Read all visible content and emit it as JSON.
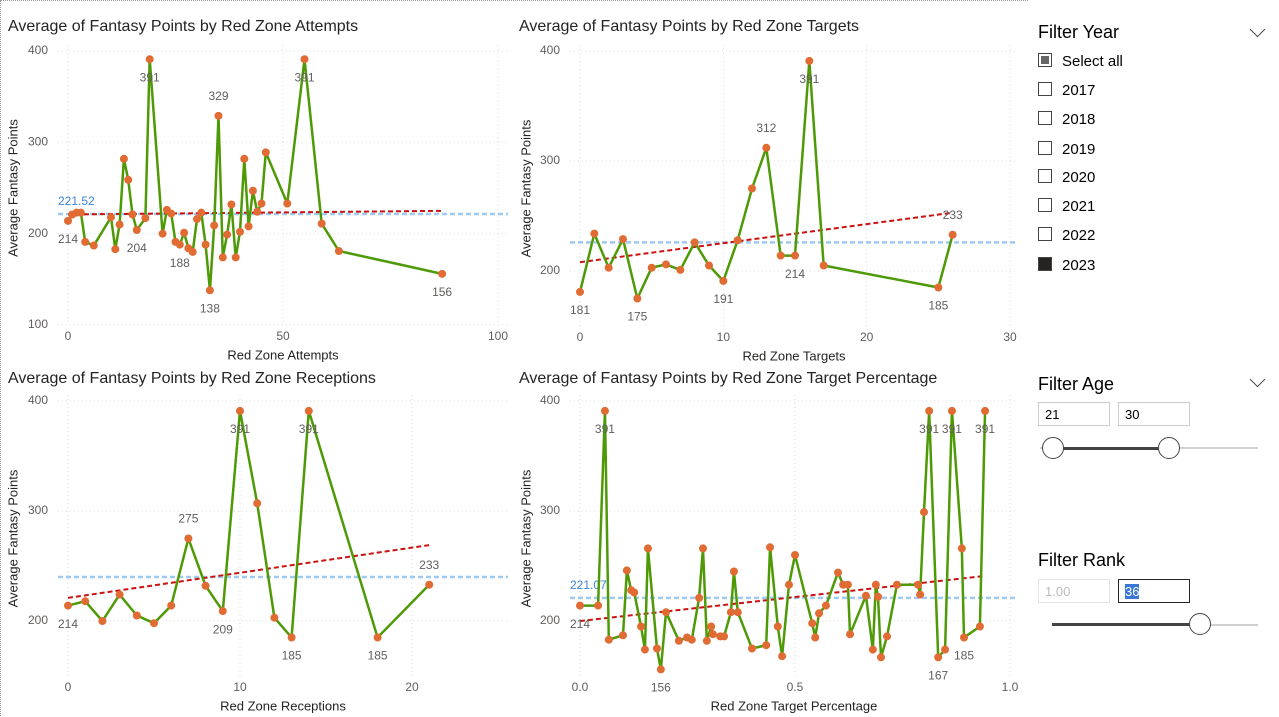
{
  "chart_data": [
    {
      "type": "line",
      "title": "Average of Fantasy Points by Red Zone Attempts",
      "x_label": "Red Zone Attempts",
      "y_label": "Average Fantasy Points",
      "x": [
        0,
        1,
        2,
        3,
        4,
        6,
        10,
        11,
        12,
        13,
        14,
        15,
        16,
        18,
        19,
        22,
        23,
        24,
        25,
        26,
        27,
        28,
        29,
        30,
        31,
        32,
        33,
        34,
        35,
        36,
        37,
        38,
        39,
        40,
        41,
        42,
        43,
        44,
        45,
        46,
        51,
        55,
        59,
        63,
        87
      ],
      "values": [
        214,
        221,
        223,
        223,
        191,
        187,
        218,
        183,
        210,
        282,
        259,
        221,
        204,
        217,
        391,
        200,
        226,
        222,
        191,
        188,
        201,
        184,
        180,
        216,
        223,
        188,
        138,
        209,
        329,
        174,
        199,
        232,
        174,
        202,
        282,
        208,
        247,
        224,
        233,
        289,
        233,
        391,
        211,
        181,
        156
      ],
      "value_labels": [
        "214",
        null,
        null,
        null,
        null,
        null,
        null,
        null,
        null,
        null,
        null,
        null,
        "204",
        null,
        "391",
        null,
        null,
        null,
        null,
        "188",
        null,
        null,
        null,
        null,
        null,
        null,
        "138",
        null,
        "329",
        null,
        null,
        null,
        null,
        null,
        null,
        null,
        null,
        null,
        null,
        null,
        null,
        "391",
        null,
        null,
        "156"
      ],
      "color": "#4e9a06",
      "marker_color": "#e06b33",
      "xlim": [
        0,
        100
      ],
      "xticks": [
        0,
        50,
        100
      ],
      "ylim": [
        100,
        400
      ],
      "yticks": [
        100,
        200,
        300,
        400
      ],
      "grid": true,
      "average_line": 221.52,
      "average_label": true,
      "average_color": "#9ec9f0",
      "trend_line": [
        221,
        225
      ],
      "trend_color": "#cc1111"
    },
    {
      "type": "line",
      "title": "Average of Fantasy Points by Red Zone Targets",
      "x_label": "Red Zone Targets",
      "y_label": "Average Fantasy Points",
      "x": [
        0,
        1,
        2,
        3,
        4,
        5,
        6,
        7,
        8,
        9,
        10,
        11,
        12,
        13,
        14,
        15,
        16,
        17,
        25,
        26
      ],
      "values": [
        181,
        234,
        203,
        229,
        175,
        203,
        206,
        201,
        226,
        205,
        191,
        228,
        275,
        312,
        214,
        214,
        391,
        205,
        185,
        233
      ],
      "value_labels": [
        "181",
        null,
        null,
        null,
        "175",
        null,
        null,
        null,
        null,
        null,
        "191",
        null,
        null,
        "312",
        null,
        "214",
        "391",
        null,
        "185",
        "233"
      ],
      "color": "#4e9a06",
      "marker_color": "#e06b33",
      "xlim": [
        0,
        30
      ],
      "xticks": [
        0,
        10,
        20,
        30
      ],
      "ylim": [
        150,
        400
      ],
      "yticks": [
        200,
        300,
        400
      ],
      "grid": true,
      "average_line": 226,
      "average_label": false,
      "average_color": "#9ec9f0",
      "trend_line": [
        208,
        253
      ],
      "trend_color": "#cc1111"
    },
    {
      "type": "line",
      "title": "Average of Fantasy Points by Red Zone Receptions",
      "x_label": "Red Zone Receptions",
      "y_label": "Average Fantasy Points",
      "x": [
        0,
        1,
        2,
        3,
        4,
        5,
        6,
        7,
        8,
        9,
        10,
        11,
        12,
        13,
        14,
        18,
        21
      ],
      "values": [
        214,
        218,
        200,
        224,
        205,
        198,
        214,
        275,
        232,
        209,
        391,
        307,
        203,
        185,
        391,
        185,
        233
      ],
      "value_labels": [
        "214",
        null,
        null,
        null,
        null,
        null,
        null,
        "275",
        null,
        "209",
        "391",
        null,
        null,
        "185",
        "391",
        "185",
        "233"
      ],
      "color": "#4e9a06",
      "marker_color": "#e06b33",
      "xlim": [
        0,
        25
      ],
      "xticks": [
        0,
        10,
        20
      ],
      "ylim": [
        150,
        400
      ],
      "yticks": [
        200,
        300,
        400
      ],
      "grid": true,
      "average_line": 240,
      "average_label": false,
      "average_color": "#9ec9f0",
      "trend_line": [
        221,
        269
      ],
      "trend_color": "#cc1111"
    },
    {
      "type": "line",
      "title": "Average of Fantasy Points by Red Zone Target Percentage",
      "x_label": "Red Zone Target Percentage",
      "y_label": "Average Fantasy Points",
      "x": [
        0,
        0.042,
        0.058,
        0.067,
        0.1,
        0.109,
        0.119,
        0.126,
        0.142,
        0.151,
        0.158,
        0.179,
        0.188,
        0.2,
        0.23,
        0.249,
        0.26,
        0.277,
        0.286,
        0.295,
        0.305,
        0.309,
        0.326,
        0.335,
        0.351,
        0.358,
        0.367,
        0.4,
        0.433,
        0.442,
        0.46,
        0.47,
        0.486,
        0.5,
        0.54,
        0.547,
        0.556,
        0.572,
        0.6,
        0.612,
        0.623,
        0.628,
        0.665,
        0.681,
        0.688,
        0.693,
        0.7,
        0.714,
        0.737,
        0.786,
        0.791,
        0.8,
        0.812,
        0.833,
        0.849,
        0.865,
        0.888,
        0.893,
        0.93,
        0.942
      ],
      "values": [
        214,
        214,
        391,
        183,
        187,
        246,
        228,
        226,
        195,
        174,
        266,
        175,
        156,
        208,
        182,
        185,
        183,
        221,
        266,
        182,
        195,
        188,
        186,
        186,
        208,
        245,
        208,
        175,
        178,
        267,
        195,
        168,
        233,
        260,
        198,
        185,
        207,
        214,
        244,
        233,
        233,
        188,
        223,
        174,
        233,
        222,
        167,
        186,
        233,
        233,
        224,
        299,
        391,
        167,
        174,
        391,
        266,
        185,
        195,
        391
      ],
      "value_labels": [
        "214",
        null,
        "391",
        null,
        null,
        null,
        null,
        null,
        null,
        null,
        null,
        null,
        "156",
        null,
        null,
        null,
        null,
        null,
        null,
        null,
        null,
        null,
        null,
        null,
        null,
        null,
        null,
        null,
        null,
        null,
        null,
        null,
        null,
        null,
        null,
        null,
        null,
        null,
        null,
        null,
        null,
        null,
        null,
        null,
        null,
        null,
        null,
        null,
        null,
        null,
        null,
        null,
        "391",
        "167",
        null,
        "391",
        null,
        "185",
        null,
        "391"
      ],
      "color": "#4e9a06",
      "marker_color": "#e06b33",
      "xlim": [
        0,
        1
      ],
      "xticks": [
        {
          "value": 0,
          "label": "0.0"
        },
        0.5,
        {
          "value": 1,
          "label": "1.0"
        }
      ],
      "ylim": [
        150,
        400
      ],
      "yticks": [
        200,
        300,
        400
      ],
      "grid": true,
      "average_line": 221.07,
      "average_label": true,
      "average_color": "#9ec9f0",
      "trend_line": [
        200,
        241
      ],
      "trend_color": "#cc1111"
    }
  ],
  "filters": {
    "year": {
      "title": "Filter Year",
      "items": [
        "Select all",
        "2017",
        "2018",
        "2019",
        "2020",
        "2021",
        "2022",
        "2023"
      ],
      "checked": [
        false,
        false,
        false,
        false,
        false,
        false,
        false,
        true
      ]
    },
    "age": {
      "title": "Filter Age",
      "min": "21",
      "max": "30"
    },
    "rank": {
      "title": "Filter Rank",
      "min": "1.00",
      "max": "36"
    }
  }
}
